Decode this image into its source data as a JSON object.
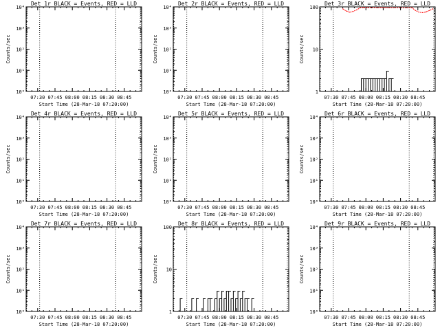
{
  "colors": {
    "events": "#000000",
    "lld": "#ff0000",
    "background": "#ffffff"
  },
  "shared": {
    "ylabel": "Counts/sec",
    "xlabel": "Start Time (28-Mar-18 07:20:00)",
    "time_ticks": [
      "07:30",
      "07:45",
      "08:00",
      "08:15",
      "08:30",
      "08:45"
    ],
    "time_tick_minutes": [
      10,
      25,
      40,
      55,
      70,
      85
    ],
    "x_range_minutes": [
      0,
      100
    ],
    "marker_lines_minutes": [
      0.4,
      11.7,
      77.5,
      98.8
    ]
  },
  "chart_data": [
    {
      "type": "line",
      "title": "Det 1r BLACK = Events, RED = LLD",
      "xlabel": "Start Time (28-Mar-18 07:20:00)",
      "ylabel": "Counts/sec",
      "yscale": "log",
      "ylim": [
        1,
        10000
      ],
      "ytick_labels": [
        "10⁰",
        "10¹",
        "10²",
        "10³",
        "10⁴"
      ],
      "series": [
        {
          "color": "#000000",
          "x": [],
          "y": []
        },
        {
          "color": "#ff0000",
          "x": [],
          "y": []
        }
      ]
    },
    {
      "type": "line",
      "title": "Det 2r BLACK = Events, RED = LLD",
      "xlabel": "Start Time (28-Mar-18 07:20:00)",
      "ylabel": "Counts/sec",
      "yscale": "log",
      "ylim": [
        1,
        10000
      ],
      "ytick_labels": [
        "10⁰",
        "10¹",
        "10²",
        "10³",
        "10⁴"
      ],
      "series": [
        {
          "color": "#000000",
          "x": [],
          "y": []
        },
        {
          "color": "#ff0000",
          "x": [],
          "y": []
        }
      ]
    },
    {
      "type": "line",
      "title": "Det 3r BLACK = Events, RED = LLD",
      "xlabel": "Start Time (28-Mar-18 07:20:00)",
      "ylabel": "Counts/sec",
      "yscale": "log",
      "ylim": [
        1,
        100
      ],
      "ytick_labels": [
        "1",
        "10",
        "100"
      ],
      "series": [
        {
          "color": "#000000",
          "x": [
            34,
            36,
            38,
            40,
            42,
            44,
            46,
            48,
            50,
            52,
            54,
            56,
            58,
            60,
            62,
            64
          ],
          "y": [
            1,
            2,
            2,
            2,
            2,
            2,
            2,
            2,
            2,
            2,
            2,
            2,
            3,
            2,
            2,
            1
          ]
        },
        {
          "color": "#ff0000",
          "x": [
            20,
            23,
            26,
            29,
            32,
            35,
            38,
            41,
            80,
            83,
            86,
            89,
            92,
            95,
            98
          ],
          "y": [
            90,
            80,
            75,
            78,
            85,
            95,
            100,
            100,
            95,
            82,
            75,
            73,
            76,
            82,
            90
          ]
        }
      ]
    },
    {
      "type": "line",
      "title": "Det 4r BLACK = Events, RED = LLD",
      "xlabel": "Start Time (28-Mar-18 07:20:00)",
      "ylabel": "Counts/sec",
      "yscale": "log",
      "ylim": [
        1,
        10000
      ],
      "ytick_labels": [
        "10⁰",
        "10¹",
        "10²",
        "10³",
        "10⁴"
      ],
      "series": [
        {
          "color": "#000000",
          "x": [],
          "y": []
        },
        {
          "color": "#ff0000",
          "x": [],
          "y": []
        }
      ]
    },
    {
      "type": "line",
      "title": "Det 5r BLACK = Events, RED = LLD",
      "xlabel": "Start Time (28-Mar-18 07:20:00)",
      "ylabel": "Counts/sec",
      "yscale": "log",
      "ylim": [
        1,
        10000
      ],
      "ytick_labels": [
        "10⁰",
        "10¹",
        "10²",
        "10³",
        "10⁴"
      ],
      "series": [
        {
          "color": "#000000",
          "x": [],
          "y": []
        },
        {
          "color": "#ff0000",
          "x": [],
          "y": []
        }
      ]
    },
    {
      "type": "line",
      "title": "Det 6r BLACK = Events, RED = LLD",
      "xlabel": "Start Time (28-Mar-18 07:20:00)",
      "ylabel": "Counts/sec",
      "yscale": "log",
      "ylim": [
        1,
        10000
      ],
      "ytick_labels": [
        "10⁰",
        "10¹",
        "10²",
        "10³",
        "10⁴"
      ],
      "series": [
        {
          "color": "#000000",
          "x": [],
          "y": []
        },
        {
          "color": "#ff0000",
          "x": [],
          "y": []
        }
      ]
    },
    {
      "type": "line",
      "title": "Det 7r BLACK = Events, RED = LLD",
      "xlabel": "Start Time (28-Mar-18 07:20:00)",
      "ylabel": "Counts/sec",
      "yscale": "log",
      "ylim": [
        1,
        10000
      ],
      "ytick_labels": [
        "10⁰",
        "10¹",
        "10²",
        "10³",
        "10⁴"
      ],
      "series": [
        {
          "color": "#000000",
          "x": [],
          "y": []
        },
        {
          "color": "#ff0000",
          "x": [],
          "y": []
        }
      ]
    },
    {
      "type": "line",
      "title": "Det 8r BLACK = Events, RED = LLD",
      "xlabel": "Start Time (28-Mar-18 07:20:00)",
      "ylabel": "Counts/sec",
      "yscale": "log",
      "ylim": [
        1,
        100
      ],
      "ytick_labels": [
        "1",
        "10",
        "100"
      ],
      "series": [
        {
          "color": "#000000",
          "x": [
            4,
            6,
            8,
            10,
            12,
            14,
            16,
            18,
            20,
            22,
            24,
            26,
            28,
            30,
            32,
            34,
            36,
            38,
            40,
            42,
            44,
            46,
            48,
            50,
            52,
            54,
            56,
            58,
            60,
            62,
            64,
            66,
            68,
            70
          ],
          "y": [
            1,
            2,
            1,
            1,
            1,
            1,
            2,
            1,
            2,
            1,
            1,
            2,
            1,
            2,
            2,
            1,
            2,
            3,
            2,
            3,
            2,
            3,
            3,
            2,
            3,
            2,
            3,
            2,
            3,
            2,
            2,
            1,
            2,
            1
          ]
        },
        {
          "color": "#ff0000",
          "x": [],
          "y": []
        }
      ]
    },
    {
      "type": "line",
      "title": "Det 9r BLACK = Events, RED = LLD",
      "xlabel": "Start Time (28-Mar-18 07:20:00)",
      "ylabel": "Counts/sec",
      "yscale": "log",
      "ylim": [
        1,
        10000
      ],
      "ytick_labels": [
        "10⁰",
        "10¹",
        "10²",
        "10³",
        "10⁴"
      ],
      "series": [
        {
          "color": "#000000",
          "x": [],
          "y": []
        },
        {
          "color": "#ff0000",
          "x": [],
          "y": []
        }
      ]
    }
  ]
}
